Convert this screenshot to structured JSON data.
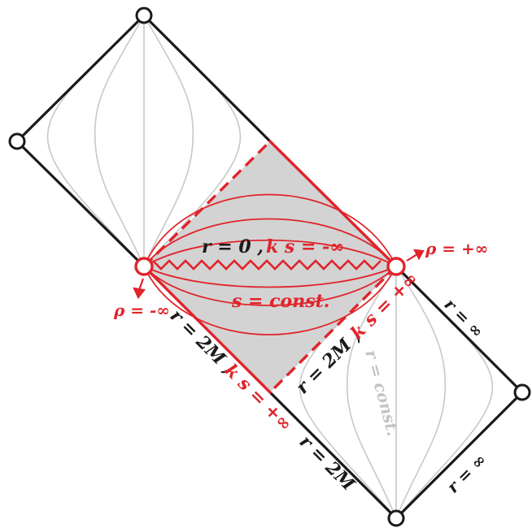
{
  "colors": {
    "outline": "#1a1a1a",
    "accent": "#e0242b",
    "shade": "#d3d3d3",
    "guide": "#c8c8c8",
    "faint_label": "#c4c4c4"
  },
  "labels": {
    "singularity": {
      "r_part": "r = 0 ,",
      "ks_part": "k s = -∞"
    },
    "s_const": "s = const.",
    "rho_minus": "ρ = -∞",
    "rho_plus": "ρ = +∞",
    "lower_left_edge": {
      "r_part": "r = 2M ,",
      "ks_part": "k s = +∞"
    },
    "right_edge": {
      "r_part": "r = 2M ,",
      "ks_part": "k s = +∞"
    },
    "r_const_faint": "r = const.",
    "r_inf_upper": "r = ∞",
    "r_inf_lower": "r = ∞",
    "r_2M_bottom": "r = 2M"
  }
}
